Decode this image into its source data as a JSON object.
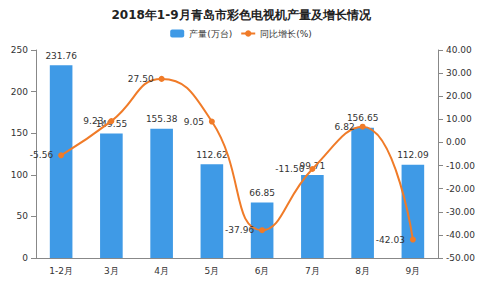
{
  "chart_data": {
    "type": "bar",
    "title": "2018年1-9月青岛市彩色电视机产量及增长情况",
    "categories": [
      "1-2月",
      "3月",
      "4月",
      "5月",
      "6月",
      "7月",
      "8月",
      "9月"
    ],
    "series": [
      {
        "name": "产量(万台)",
        "type": "bar",
        "color": "#3f9ae6",
        "values": [
          231.76,
          149.55,
          155.38,
          112.62,
          66.85,
          99.71,
          156.65,
          112.09
        ]
      },
      {
        "name": "同比增长(%)",
        "type": "line",
        "axis": "y2",
        "color": "#f07b28",
        "marker": "circle",
        "line_style": "smooth",
        "values": [
          -5.56,
          9.23,
          27.5,
          9.05,
          -37.96,
          -11.5,
          6.82,
          -42.03
        ],
        "value_labels": [
          "-5.56",
          "9.23",
          "27.50",
          "9.05",
          "-37.96",
          "-11.50",
          "6.82",
          "-42.03"
        ]
      }
    ],
    "ylim": [
      0,
      250
    ],
    "yticks": [
      0,
      50,
      100,
      150,
      200,
      250
    ],
    "y2lim": [
      -50,
      40
    ],
    "y2ticks": [
      {
        "value": -50,
        "label": "-50.00"
      },
      {
        "value": -40,
        "label": "-40.00"
      },
      {
        "value": -30,
        "label": "-30.00"
      },
      {
        "value": -20,
        "label": "-20.00"
      },
      {
        "value": -10,
        "label": "-10.00"
      },
      {
        "value": 0,
        "label": "0.00"
      },
      {
        "value": 10,
        "label": "10.00"
      },
      {
        "value": 20,
        "label": "20.00"
      },
      {
        "value": 30,
        "label": "30.00"
      },
      {
        "value": 40,
        "label": "40.00"
      }
    ],
    "data_labels": true,
    "legend": "top",
    "grid": false
  }
}
